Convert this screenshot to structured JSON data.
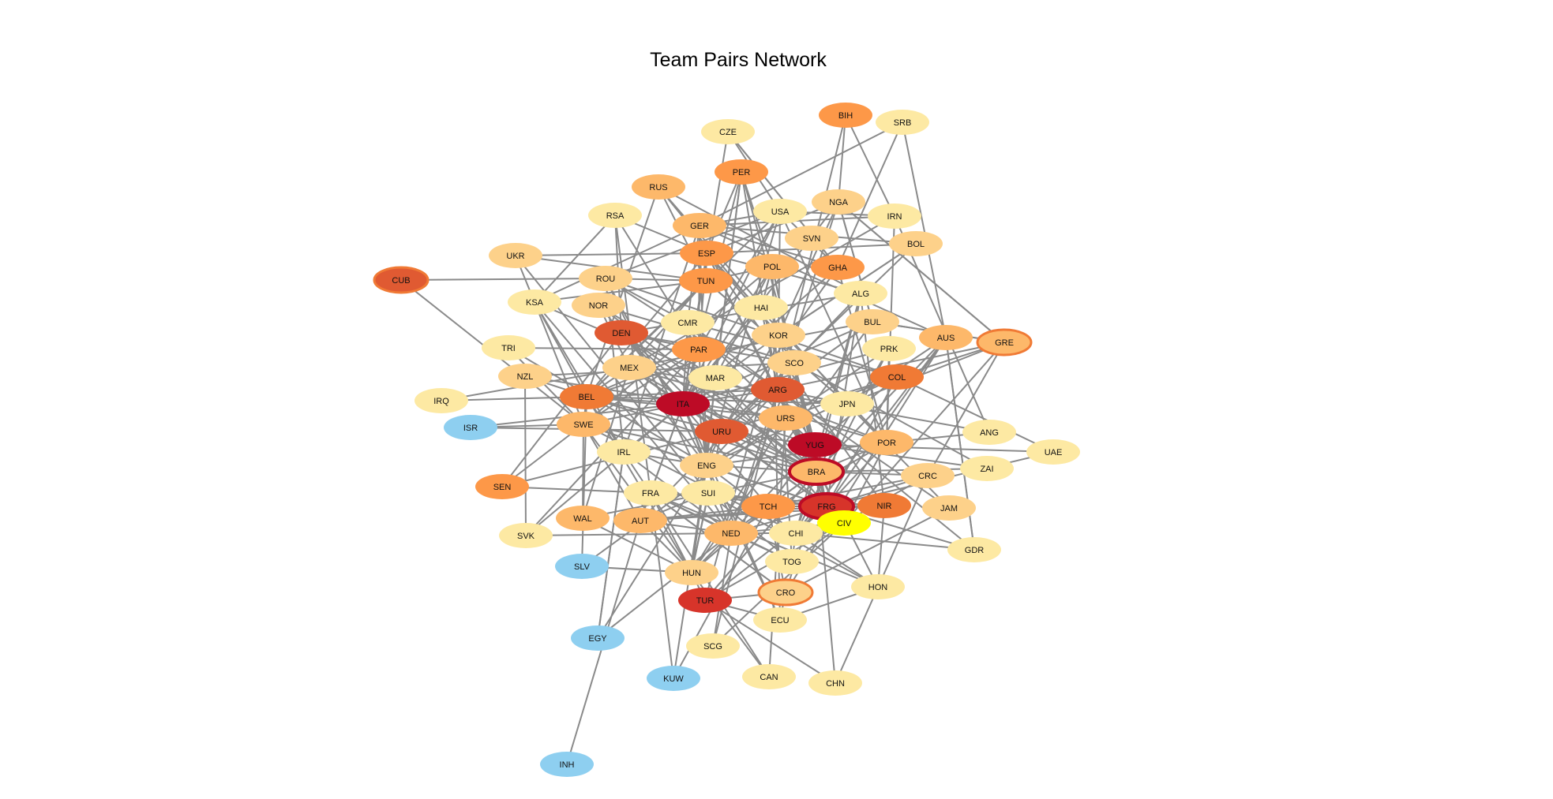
{
  "title": "Team Pairs Network",
  "colors": {
    "edge": "#8a8a8a",
    "pale_yellow": "#fde9a3",
    "light_orange": "#fdd18a",
    "orange_tan": "#fdb86a",
    "orange": "#fd9848",
    "dark_orange": "#f07a35",
    "red_orange": "#e05a32",
    "red": "#d7342a",
    "dark_red": "#bd0b26",
    "light_blue": "#8ecff0",
    "yellow": "#ffff00",
    "ring_orange": "#f07a35",
    "ring_red": "#bd0b26"
  },
  "nodes": [
    {
      "id": "BIH",
      "fill": "orange"
    },
    {
      "id": "SRB",
      "fill": "pale_yellow"
    },
    {
      "id": "CZE",
      "fill": "pale_yellow"
    },
    {
      "id": "PER",
      "fill": "orange"
    },
    {
      "id": "RUS",
      "fill": "orange_tan"
    },
    {
      "id": "USA",
      "fill": "pale_yellow"
    },
    {
      "id": "NGA",
      "fill": "light_orange"
    },
    {
      "id": "IRN",
      "fill": "pale_yellow"
    },
    {
      "id": "RSA",
      "fill": "pale_yellow"
    },
    {
      "id": "GER",
      "fill": "orange_tan"
    },
    {
      "id": "SVN",
      "fill": "light_orange"
    },
    {
      "id": "BOL",
      "fill": "light_orange"
    },
    {
      "id": "UKR",
      "fill": "light_orange"
    },
    {
      "id": "ESP",
      "fill": "orange"
    },
    {
      "id": "GHA",
      "fill": "orange"
    },
    {
      "id": "CUB",
      "fill": "red_orange",
      "ring": "ring_orange"
    },
    {
      "id": "ROU",
      "fill": "light_orange"
    },
    {
      "id": "TUN",
      "fill": "orange"
    },
    {
      "id": "POL",
      "fill": "orange_tan"
    },
    {
      "id": "ALG",
      "fill": "pale_yellow"
    },
    {
      "id": "KSA",
      "fill": "pale_yellow"
    },
    {
      "id": "NOR",
      "fill": "light_orange"
    },
    {
      "id": "HAI",
      "fill": "pale_yellow"
    },
    {
      "id": "BUL",
      "fill": "light_orange"
    },
    {
      "id": "AUS",
      "fill": "orange_tan"
    },
    {
      "id": "GRE",
      "fill": "orange_tan",
      "ring": "ring_orange"
    },
    {
      "id": "DEN",
      "fill": "red_orange"
    },
    {
      "id": "CMR",
      "fill": "pale_yellow"
    },
    {
      "id": "KOR",
      "fill": "light_orange"
    },
    {
      "id": "TRI",
      "fill": "pale_yellow"
    },
    {
      "id": "PAR",
      "fill": "orange"
    },
    {
      "id": "PRK",
      "fill": "pale_yellow"
    },
    {
      "id": "SCO",
      "fill": "light_orange"
    },
    {
      "id": "NZL",
      "fill": "light_orange"
    },
    {
      "id": "MEX",
      "fill": "light_orange"
    },
    {
      "id": "MAR",
      "fill": "pale_yellow"
    },
    {
      "id": "COL",
      "fill": "dark_orange"
    },
    {
      "id": "IRQ",
      "fill": "pale_yellow"
    },
    {
      "id": "BEL",
      "fill": "dark_orange"
    },
    {
      "id": "ARG",
      "fill": "red_orange"
    },
    {
      "id": "ITA",
      "fill": "dark_red"
    },
    {
      "id": "JPN",
      "fill": "pale_yellow"
    },
    {
      "id": "ISR",
      "fill": "light_blue"
    },
    {
      "id": "SWE",
      "fill": "orange_tan"
    },
    {
      "id": "URS",
      "fill": "orange_tan"
    },
    {
      "id": "URU",
      "fill": "red_orange"
    },
    {
      "id": "ANG",
      "fill": "pale_yellow"
    },
    {
      "id": "YUG",
      "fill": "dark_red"
    },
    {
      "id": "POR",
      "fill": "orange_tan"
    },
    {
      "id": "UAE",
      "fill": "pale_yellow"
    },
    {
      "id": "IRL",
      "fill": "pale_yellow"
    },
    {
      "id": "ENG",
      "fill": "light_orange"
    },
    {
      "id": "BRA",
      "fill": "orange_tan",
      "ring": "ring_red"
    },
    {
      "id": "ZAI",
      "fill": "pale_yellow"
    },
    {
      "id": "CRC",
      "fill": "light_orange"
    },
    {
      "id": "SEN",
      "fill": "orange"
    },
    {
      "id": "FRA",
      "fill": "pale_yellow"
    },
    {
      "id": "SUI",
      "fill": "pale_yellow"
    },
    {
      "id": "TCH",
      "fill": "orange"
    },
    {
      "id": "FRG",
      "fill": "red",
      "ring": "ring_red"
    },
    {
      "id": "NIR",
      "fill": "dark_orange"
    },
    {
      "id": "JAM",
      "fill": "light_orange"
    },
    {
      "id": "CIV",
      "fill": "yellow"
    },
    {
      "id": "WAL",
      "fill": "orange_tan"
    },
    {
      "id": "AUT",
      "fill": "orange_tan"
    },
    {
      "id": "SVK",
      "fill": "pale_yellow"
    },
    {
      "id": "NED",
      "fill": "orange_tan"
    },
    {
      "id": "CHI",
      "fill": "pale_yellow"
    },
    {
      "id": "GDR",
      "fill": "pale_yellow"
    },
    {
      "id": "TOG",
      "fill": "pale_yellow"
    },
    {
      "id": "SLV",
      "fill": "light_blue"
    },
    {
      "id": "HUN",
      "fill": "light_orange"
    },
    {
      "id": "HON",
      "fill": "pale_yellow"
    },
    {
      "id": "CRO",
      "fill": "light_orange",
      "ring": "ring_orange"
    },
    {
      "id": "TUR",
      "fill": "red"
    },
    {
      "id": "ECU",
      "fill": "pale_yellow"
    },
    {
      "id": "EGY",
      "fill": "light_blue"
    },
    {
      "id": "SCG",
      "fill": "pale_yellow"
    },
    {
      "id": "KUW",
      "fill": "light_blue"
    },
    {
      "id": "CAN",
      "fill": "pale_yellow"
    },
    {
      "id": "CHN",
      "fill": "pale_yellow"
    },
    {
      "id": "INH",
      "fill": "light_blue"
    }
  ],
  "edges": [
    [
      "INH",
      "AUT"
    ],
    [
      "CUB",
      "ROU"
    ],
    [
      "CUB",
      "SWE"
    ],
    [
      "IRQ",
      "BEL"
    ],
    [
      "IRQ",
      "MEX"
    ],
    [
      "ISR",
      "SWE"
    ],
    [
      "ISR",
      "ITA"
    ],
    [
      "ISR",
      "URU"
    ],
    [
      "SEN",
      "FRA"
    ],
    [
      "SEN",
      "URU"
    ],
    [
      "SEN",
      "DEN"
    ],
    [
      "SEN",
      "SWE"
    ],
    [
      "TRI",
      "SWE"
    ],
    [
      "TRI",
      "PAR"
    ],
    [
      "TRI",
      "ENG"
    ],
    [
      "SVK",
      "ITA"
    ],
    [
      "SVK",
      "PAR"
    ],
    [
      "SVK",
      "NZL"
    ],
    [
      "SVK",
      "NED"
    ],
    [
      "SLV",
      "BEL"
    ],
    [
      "SLV",
      "HUN"
    ],
    [
      "SLV",
      "URS"
    ],
    [
      "EGY",
      "NED"
    ],
    [
      "EGY",
      "IRL"
    ],
    [
      "EGY",
      "ENG"
    ],
    [
      "KUW",
      "FRA"
    ],
    [
      "KUW",
      "ENG"
    ],
    [
      "KUW",
      "TCH"
    ],
    [
      "SCG",
      "NED"
    ],
    [
      "SCG",
      "ARG"
    ],
    [
      "SCG",
      "CIV"
    ],
    [
      "CAN",
      "FRA"
    ],
    [
      "CAN",
      "HUN"
    ],
    [
      "CAN",
      "URS"
    ],
    [
      "CHN",
      "BRA"
    ],
    [
      "CHN",
      "CRC"
    ],
    [
      "CHN",
      "TUR"
    ],
    [
      "UAE",
      "YUG"
    ],
    [
      "UAE",
      "FRG"
    ],
    [
      "UAE",
      "COL"
    ],
    [
      "ANG",
      "POR"
    ],
    [
      "ANG",
      "MEX"
    ],
    [
      "ANG",
      "IRN"
    ],
    [
      "ZAI",
      "YUG"
    ],
    [
      "ZAI",
      "BRA"
    ],
    [
      "ZAI",
      "SCO"
    ],
    [
      "GDR",
      "CHI"
    ],
    [
      "GDR",
      "AUS"
    ],
    [
      "GDR",
      "FRG"
    ],
    [
      "GDR",
      "ARG"
    ],
    [
      "JAM",
      "ARG"
    ],
    [
      "JAM",
      "CRO"
    ],
    [
      "JAM",
      "JPN"
    ],
    [
      "HON",
      "SUI"
    ],
    [
      "HON",
      "ECU"
    ],
    [
      "HON",
      "CHI"
    ],
    [
      "HON",
      "ESP"
    ],
    [
      "HON",
      "NIR"
    ],
    [
      "HON",
      "FRA"
    ],
    [
      "GRE",
      "ARG"
    ],
    [
      "GRE",
      "NGA"
    ],
    [
      "GRE",
      "BUL"
    ],
    [
      "GRE",
      "JPN"
    ],
    [
      "GRE",
      "CRC"
    ],
    [
      "GRE",
      "COL"
    ],
    [
      "GRE",
      "CIV"
    ],
    [
      "BIH",
      "ARG"
    ],
    [
      "BIH",
      "NGA"
    ],
    [
      "BIH",
      "IRN"
    ],
    [
      "SRB",
      "GER"
    ],
    [
      "SRB",
      "GHA"
    ],
    [
      "SRB",
      "AUS"
    ],
    [
      "CZE",
      "USA"
    ],
    [
      "CZE",
      "ITA"
    ],
    [
      "CZE",
      "GHA"
    ],
    [
      "RSA",
      "FRA"
    ],
    [
      "RSA",
      "DEN"
    ],
    [
      "RSA",
      "KSA"
    ],
    [
      "RSA",
      "ESP"
    ],
    [
      "RSA",
      "PAR"
    ],
    [
      "UKR",
      "KSA"
    ],
    [
      "UKR",
      "ESP"
    ],
    [
      "UKR",
      "TUN"
    ],
    [
      "UKR",
      "SUI"
    ],
    [
      "KSA",
      "IRL"
    ],
    [
      "KSA",
      "MAR"
    ],
    [
      "KSA",
      "BEL"
    ],
    [
      "KSA",
      "NED"
    ],
    [
      "KSA",
      "SWE"
    ],
    [
      "NZL",
      "SCO"
    ],
    [
      "NZL",
      "BRA"
    ],
    [
      "NZL",
      "URS"
    ],
    [
      "RUS",
      "KOR"
    ],
    [
      "RUS",
      "BEL"
    ],
    [
      "RUS",
      "TUN"
    ],
    [
      "RUS",
      "ALG"
    ],
    [
      "PER",
      "SCO"
    ],
    [
      "PER",
      "HUN"
    ],
    [
      "PER",
      "ARG"
    ],
    [
      "PER",
      "POL"
    ],
    [
      "PER",
      "ITA"
    ],
    [
      "PER",
      "ESP"
    ],
    [
      "USA",
      "ITA"
    ],
    [
      "USA",
      "POR"
    ],
    [
      "USA",
      "KOR"
    ],
    [
      "USA",
      "ENG"
    ],
    [
      "USA",
      "BEL"
    ],
    [
      "USA",
      "PAR"
    ],
    [
      "NGA",
      "ARG"
    ],
    [
      "NGA",
      "GRE"
    ],
    [
      "NGA",
      "KOR"
    ],
    [
      "NGA",
      "ESP"
    ],
    [
      "NGA",
      "BUL"
    ],
    [
      "NGA",
      "ITA"
    ],
    [
      "IRN",
      "USA"
    ],
    [
      "IRN",
      "GER"
    ],
    [
      "IRN",
      "MEX"
    ],
    [
      "IRN",
      "POR"
    ],
    [
      "BOL",
      "GER"
    ],
    [
      "BOL",
      "KOR"
    ],
    [
      "BOL",
      "ESP"
    ],
    [
      "BOL",
      "URU"
    ],
    [
      "GER",
      "KSA"
    ],
    [
      "GER",
      "IRL"
    ],
    [
      "GER",
      "CMR"
    ],
    [
      "GER",
      "PAR"
    ],
    [
      "GER",
      "USA"
    ],
    [
      "GER",
      "ENG"
    ],
    [
      "ESP",
      "ITA"
    ],
    [
      "ESP",
      "BRA"
    ],
    [
      "ESP",
      "BEL"
    ],
    [
      "ESP",
      "KOR"
    ],
    [
      "ESP",
      "TUN"
    ],
    [
      "ESP",
      "POR"
    ],
    [
      "GHA",
      "CZE"
    ],
    [
      "GHA",
      "ITA"
    ],
    [
      "GHA",
      "USA"
    ],
    [
      "GHA",
      "URU"
    ],
    [
      "GHA",
      "POR"
    ],
    [
      "GHA",
      "GER"
    ],
    [
      "ROU",
      "ARG"
    ],
    [
      "ROU",
      "SUI"
    ],
    [
      "ROU",
      "USA"
    ],
    [
      "ROU",
      "ENG"
    ],
    [
      "ROU",
      "TUN"
    ],
    [
      "ROU",
      "COL"
    ],
    [
      "TUN",
      "MEX"
    ],
    [
      "TUN",
      "POL"
    ],
    [
      "TUN",
      "BEL"
    ],
    [
      "TUN",
      "JPN"
    ],
    [
      "TUN",
      "KSA"
    ],
    [
      "POL",
      "ARG"
    ],
    [
      "POL",
      "ITA"
    ],
    [
      "POL",
      "BRA"
    ],
    [
      "POL",
      "HAI"
    ],
    [
      "POL",
      "FRG"
    ],
    [
      "POL",
      "SWE"
    ],
    [
      "ALG",
      "FRG"
    ],
    [
      "ALG",
      "CHI"
    ],
    [
      "ALG",
      "AUT"
    ],
    [
      "ALG",
      "NIR"
    ],
    [
      "ALG",
      "ESP"
    ],
    [
      "ALG",
      "BRA"
    ],
    [
      "NOR",
      "ITA"
    ],
    [
      "NOR",
      "MEX"
    ],
    [
      "NOR",
      "BRA"
    ],
    [
      "NOR",
      "MAR"
    ],
    [
      "NOR",
      "SCO"
    ],
    [
      "HAI",
      "ITA"
    ],
    [
      "HAI",
      "ARG"
    ],
    [
      "HAI",
      "POL"
    ],
    [
      "BUL",
      "ARG"
    ],
    [
      "BUL",
      "GRE"
    ],
    [
      "BUL",
      "NGA"
    ],
    [
      "BUL",
      "HUN"
    ],
    [
      "BUL",
      "ITA"
    ],
    [
      "BUL",
      "MEX"
    ],
    [
      "AUS",
      "GDR"
    ],
    [
      "AUS",
      "CHI"
    ],
    [
      "AUS",
      "FRG"
    ],
    [
      "AUS",
      "GER"
    ],
    [
      "AUS",
      "JPN"
    ],
    [
      "AUS",
      "BRA"
    ],
    [
      "AUS",
      "CRO"
    ],
    [
      "DEN",
      "URU"
    ],
    [
      "DEN",
      "FRG"
    ],
    [
      "DEN",
      "SCO"
    ],
    [
      "DEN",
      "ALG"
    ],
    [
      "DEN",
      "TCH"
    ],
    [
      "DEN",
      "BRA"
    ],
    [
      "CMR",
      "ARG"
    ],
    [
      "CMR",
      "ITA"
    ],
    [
      "CMR",
      "URS"
    ],
    [
      "CMR",
      "ROU"
    ],
    [
      "CMR",
      "COL"
    ],
    [
      "CMR",
      "ENG"
    ],
    [
      "KOR",
      "URU"
    ],
    [
      "KOR",
      "ITA"
    ],
    [
      "KOR",
      "ESP"
    ],
    [
      "KOR",
      "BEL"
    ],
    [
      "KOR",
      "BOL"
    ],
    [
      "KOR",
      "FRG"
    ],
    [
      "PAR",
      "ITA"
    ],
    [
      "PAR",
      "SWE"
    ],
    [
      "PAR",
      "BEL"
    ],
    [
      "PAR",
      "ESP"
    ],
    [
      "PAR",
      "DEN"
    ],
    [
      "PAR",
      "ENG"
    ],
    [
      "PRK",
      "ITA"
    ],
    [
      "PRK",
      "POR"
    ],
    [
      "PRK",
      "BRA"
    ],
    [
      "PRK",
      "CHI"
    ],
    [
      "PRK",
      "URS"
    ],
    [
      "SCO",
      "BRA"
    ],
    [
      "SCO",
      "NED"
    ],
    [
      "SCO",
      "FRG"
    ],
    [
      "SCO",
      "YUG"
    ],
    [
      "SCO",
      "URU"
    ],
    [
      "MEX",
      "ITA"
    ],
    [
      "MEX",
      "BRA"
    ],
    [
      "MEX",
      "URU"
    ],
    [
      "MEX",
      "ENG"
    ],
    [
      "MEX",
      "BEL"
    ],
    [
      "MEX",
      "FRG"
    ],
    [
      "MAR",
      "FRG"
    ],
    [
      "MAR",
      "POR"
    ],
    [
      "MAR",
      "ENG"
    ],
    [
      "MAR",
      "POL"
    ],
    [
      "MAR",
      "BRA"
    ],
    [
      "MAR",
      "PER"
    ],
    [
      "COL",
      "YUG"
    ],
    [
      "COL",
      "URS"
    ],
    [
      "COL",
      "FRG"
    ],
    [
      "COL",
      "URU"
    ],
    [
      "COL",
      "ENG"
    ],
    [
      "BEL",
      "ITA"
    ],
    [
      "BEL",
      "URU"
    ],
    [
      "BEL",
      "ARG"
    ],
    [
      "BEL",
      "FRA"
    ],
    [
      "BEL",
      "HUN"
    ],
    [
      "BEL",
      "SWE"
    ],
    [
      "ARG",
      "ITA"
    ],
    [
      "ARG",
      "FRG"
    ],
    [
      "ARG",
      "BRA"
    ],
    [
      "ARG",
      "URU"
    ],
    [
      "ARG",
      "NED"
    ],
    [
      "ARG",
      "ENG"
    ],
    [
      "ARG",
      "YUG"
    ],
    [
      "ITA",
      "BRA"
    ],
    [
      "ITA",
      "FRG"
    ],
    [
      "ITA",
      "URU"
    ],
    [
      "ITA",
      "SWE"
    ],
    [
      "ITA",
      "ENG"
    ],
    [
      "ITA",
      "FRA"
    ],
    [
      "ITA",
      "AUT"
    ],
    [
      "ITA",
      "NED"
    ],
    [
      "ITA",
      "YUG"
    ],
    [
      "JPN",
      "BEL"
    ],
    [
      "JPN",
      "CRO"
    ],
    [
      "JPN",
      "ARG"
    ],
    [
      "JPN",
      "TUN"
    ],
    [
      "JPN",
      "RUS"
    ],
    [
      "SWE",
      "BRA"
    ],
    [
      "SWE",
      "FRG"
    ],
    [
      "SWE",
      "HUN"
    ],
    [
      "SWE",
      "ENG"
    ],
    [
      "SWE",
      "AUT"
    ],
    [
      "URS",
      "YUG"
    ],
    [
      "URS",
      "BEL"
    ],
    [
      "URS",
      "HUN"
    ],
    [
      "URS",
      "ENG"
    ],
    [
      "URS",
      "BRA"
    ],
    [
      "URU",
      "BRA"
    ],
    [
      "URU",
      "FRG"
    ],
    [
      "URU",
      "ENG"
    ],
    [
      "URU",
      "YUG"
    ],
    [
      "URU",
      "HUN"
    ],
    [
      "YUG",
      "BRA"
    ],
    [
      "YUG",
      "FRG"
    ],
    [
      "YUG",
      "NED"
    ],
    [
      "YUG",
      "SCO"
    ],
    [
      "YUG",
      "TCH"
    ],
    [
      "POR",
      "BRA"
    ],
    [
      "POR",
      "FRG"
    ],
    [
      "POR",
      "ENG"
    ],
    [
      "POR",
      "NED"
    ],
    [
      "POR",
      "MEX"
    ],
    [
      "IRL",
      "ITA"
    ],
    [
      "IRL",
      "ENG"
    ],
    [
      "IRL",
      "NED"
    ],
    [
      "IRL",
      "ROU"
    ],
    [
      "IRL",
      "EGY"
    ],
    [
      "ENG",
      "BRA"
    ],
    [
      "ENG",
      "FRG"
    ],
    [
      "ENG",
      "HUN"
    ],
    [
      "ENG",
      "CHI"
    ],
    [
      "BRA",
      "FRG"
    ],
    [
      "BRA",
      "TCH"
    ],
    [
      "BRA",
      "CHI"
    ],
    [
      "BRA",
      "NED"
    ],
    [
      "BRA",
      "TUR"
    ],
    [
      "BRA",
      "CRC"
    ],
    [
      "CRC",
      "FRG"
    ],
    [
      "CRC",
      "TUR"
    ],
    [
      "CRC",
      "TCH"
    ],
    [
      "FRA",
      "FRG"
    ],
    [
      "FRA",
      "AUT"
    ],
    [
      "FRA",
      "HUN"
    ],
    [
      "FRA",
      "NED"
    ],
    [
      "FRA",
      "CRO"
    ],
    [
      "SUI",
      "FRG"
    ],
    [
      "SUI",
      "AUT"
    ],
    [
      "SUI",
      "HUN"
    ],
    [
      "SUI",
      "TCH"
    ],
    [
      "SUI",
      "NED"
    ],
    [
      "TCH",
      "FRG"
    ],
    [
      "TCH",
      "NED"
    ],
    [
      "TCH",
      "HUN"
    ],
    [
      "TCH",
      "CRO"
    ],
    [
      "FRG",
      "NED"
    ],
    [
      "FRG",
      "NIR"
    ],
    [
      "FRG",
      "AUT"
    ],
    [
      "FRG",
      "CHI"
    ],
    [
      "FRG",
      "TUR"
    ],
    [
      "NIR",
      "FRA"
    ],
    [
      "NIR",
      "AUT"
    ],
    [
      "NIR",
      "ESP"
    ],
    [
      "CIV",
      "NED"
    ],
    [
      "CIV",
      "POR"
    ],
    [
      "CIV",
      "ARG"
    ],
    [
      "CIV",
      "TOG"
    ],
    [
      "WAL",
      "BRA"
    ],
    [
      "WAL",
      "HUN"
    ],
    [
      "WAL",
      "SWE"
    ],
    [
      "WAL",
      "MEX"
    ],
    [
      "AUT",
      "HUN"
    ],
    [
      "AUT",
      "NED"
    ],
    [
      "AUT",
      "TCH"
    ],
    [
      "NED",
      "HUN"
    ],
    [
      "NED",
      "CHI"
    ],
    [
      "NED",
      "TOG"
    ],
    [
      "CHI",
      "TOG"
    ],
    [
      "CHI",
      "SWE"
    ],
    [
      "TOG",
      "KOR"
    ],
    [
      "TOG",
      "FRA"
    ],
    [
      "TOG",
      "SUI"
    ],
    [
      "HUN",
      "TUR"
    ],
    [
      "HUN",
      "TCH"
    ],
    [
      "CRO",
      "TUR"
    ],
    [
      "CRO",
      "ECU"
    ],
    [
      "CRO",
      "FRA"
    ],
    [
      "TUR",
      "ECU"
    ],
    [
      "TUR",
      "KOR"
    ],
    [
      "TUR",
      "BRA"
    ],
    [
      "ECU",
      "ITA"
    ],
    [
      "ECU",
      "CRO"
    ],
    [
      "ECU",
      "POL"
    ],
    [
      "ECU",
      "ENG"
    ]
  ]
}
